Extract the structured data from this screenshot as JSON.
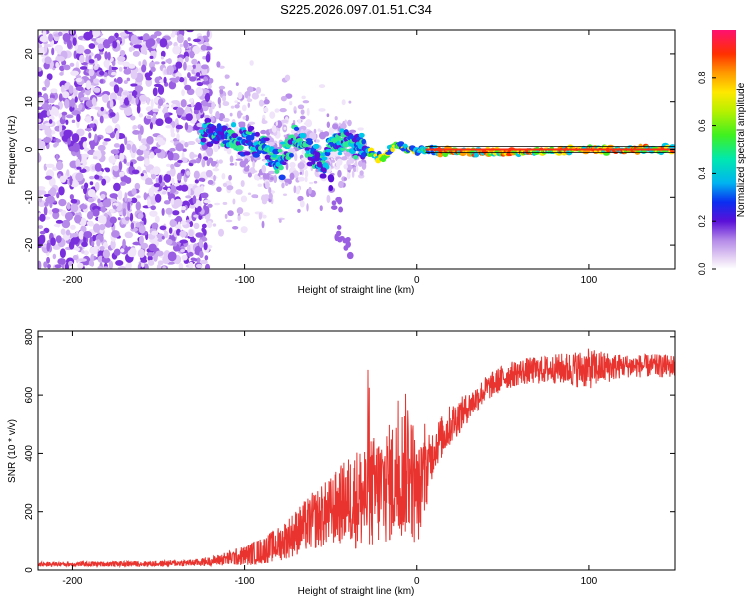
{
  "title": "S225.2026.097.01.51.C34",
  "chart_data": [
    {
      "type": "heatmap",
      "xlabel": "Height of straight line (km)",
      "ylabel": "Frequency (Hz)",
      "xlim": [
        -220,
        150
      ],
      "ylim": [
        -25,
        25
      ],
      "xticks": [
        -200,
        -100,
        0,
        100
      ],
      "yticks": [
        -20,
        -10,
        0,
        10,
        20
      ],
      "colorbar": {
        "label": "Normalized spectral amplitude",
        "range": [
          0,
          1
        ],
        "ticks": [
          0.0,
          0.2,
          0.4,
          0.6,
          0.8
        ]
      },
      "ridge": {
        "description_points": [
          [
            -125,
            4
          ],
          [
            -115,
            3
          ],
          [
            -100,
            2
          ],
          [
            -90,
            1
          ],
          [
            -80,
            -3
          ],
          [
            -70,
            3
          ],
          [
            -65,
            1
          ],
          [
            -55,
            -3
          ],
          [
            -50,
            1
          ],
          [
            -40,
            2
          ],
          [
            -30,
            0
          ],
          [
            -20,
            -2
          ],
          [
            -12,
            1
          ],
          [
            -5,
            0
          ],
          [
            5,
            0
          ],
          [
            20,
            -0.5
          ],
          [
            60,
            -0.5
          ],
          [
            100,
            0
          ],
          [
            150,
            0
          ]
        ]
      },
      "branch": [
        [
          -58,
          -2
        ],
        [
          -52,
          -6
        ],
        [
          -47,
          -12
        ],
        [
          -44,
          -17
        ],
        [
          -41,
          -20
        ]
      ]
    },
    {
      "type": "line",
      "xlabel": "Height of straight line (km)",
      "ylabel": "SNR (10 * v/v)",
      "xlim": [
        -220,
        150
      ],
      "ylim": [
        0,
        820
      ],
      "xticks": [
        -200,
        -100,
        0,
        100
      ],
      "yticks": [
        0,
        200,
        400,
        600,
        800
      ],
      "series": [
        {
          "name": "SNR",
          "color": "#e8332e",
          "x": [
            -220,
            -150,
            -130,
            -120,
            -110,
            -100,
            -90,
            -80,
            -70,
            -60,
            -50,
            -40,
            -30,
            -20,
            -10,
            -5,
            0,
            5,
            10,
            20,
            30,
            40,
            50,
            60,
            80,
            100,
            120,
            150
          ],
          "mean": [
            20,
            22,
            25,
            30,
            40,
            50,
            65,
            90,
            130,
            170,
            200,
            240,
            250,
            280,
            320,
            380,
            250,
            320,
            420,
            500,
            560,
            620,
            660,
            680,
            690,
            690,
            700,
            700
          ],
          "amp": [
            8,
            10,
            12,
            15,
            25,
            35,
            45,
            60,
            80,
            100,
            120,
            150,
            200,
            200,
            220,
            260,
            180,
            120,
            80,
            70,
            50,
            45,
            45,
            45,
            50,
            70,
            40,
            40
          ]
        }
      ]
    }
  ]
}
